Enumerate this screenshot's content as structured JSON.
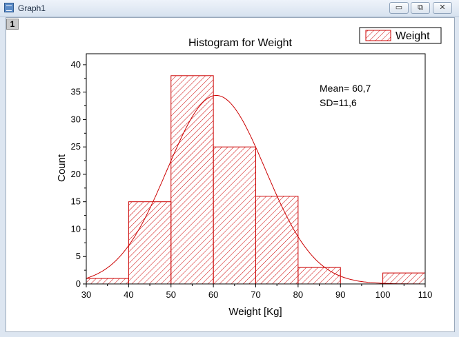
{
  "window": {
    "title": "Graph1",
    "layer_label": "1",
    "controls": {
      "minimize": "▭",
      "restore": "⧉",
      "close": "✕"
    }
  },
  "colors": {
    "series": "#cc0000",
    "axis": "#000000",
    "text": "#000000"
  },
  "chart_data": {
    "type": "bar",
    "title": "Histogram for Weight",
    "xlabel": "Weight [Kg]",
    "ylabel": "Count",
    "xlim": [
      30,
      110
    ],
    "ylim": [
      0,
      42
    ],
    "xticks": [
      30,
      40,
      50,
      60,
      70,
      80,
      90,
      100,
      110
    ],
    "yticks": [
      0,
      5,
      10,
      15,
      20,
      25,
      30,
      35,
      40
    ],
    "bins": [
      {
        "from": 30,
        "to": 40,
        "count": 1
      },
      {
        "from": 40,
        "to": 50,
        "count": 15
      },
      {
        "from": 50,
        "to": 60,
        "count": 38
      },
      {
        "from": 60,
        "to": 70,
        "count": 25
      },
      {
        "from": 70,
        "to": 80,
        "count": 16
      },
      {
        "from": 80,
        "to": 90,
        "count": 3
      },
      {
        "from": 90,
        "to": 100,
        "count": 0
      },
      {
        "from": 100,
        "to": 110,
        "count": 2
      }
    ],
    "fit_curve": {
      "type": "normal",
      "mean": 60.7,
      "sd": 11.6,
      "peak": 34.4
    },
    "stats": [
      "Mean= 60,7",
      "SD=11,6"
    ],
    "legend": {
      "entries": [
        "Weight"
      ],
      "placement": "top-right",
      "fill": "diagonal-hatch"
    },
    "grid": false
  }
}
